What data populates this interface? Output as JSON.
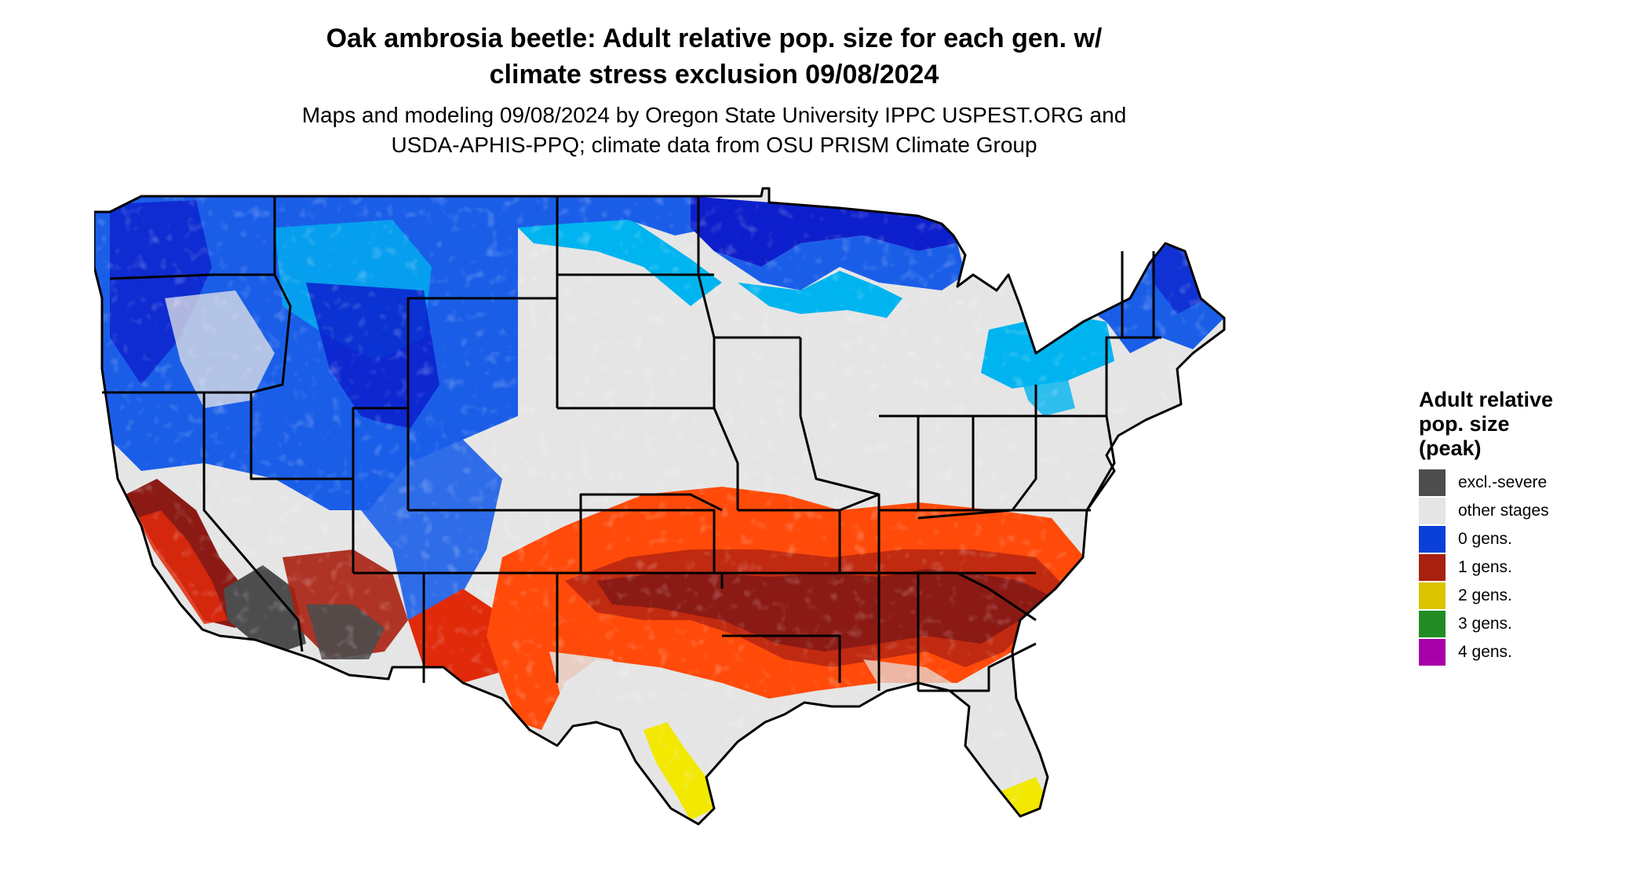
{
  "title": {
    "line1": "Oak ambrosia beetle: Adult relative pop. size for each gen. w/",
    "line2": "climate stress exclusion 09/08/2024"
  },
  "subtitle": {
    "line1": "Maps and modeling 09/08/2024 by Oregon State University IPPC USPEST.ORG and",
    "line2": "USDA-APHIS-PPQ; climate data from OSU PRISM Climate Group"
  },
  "legend": {
    "title_line1": "Adult relative",
    "title_line2": "pop. size",
    "title_line3": "(peak)",
    "items": [
      {
        "label": "excl.-severe",
        "color": "#4d4d4d"
      },
      {
        "label": "other stages",
        "color": "#e5e5e5"
      },
      {
        "label": "0 gens.",
        "color": "#0a3fd8"
      },
      {
        "label": "1 gens.",
        "color": "#a8200f"
      },
      {
        "label": "2 gens.",
        "color": "#dcc400"
      },
      {
        "label": "3 gens.",
        "color": "#238b24"
      },
      {
        "label": "4 gens.",
        "color": "#a800a8"
      }
    ]
  },
  "map_colors": {
    "land": "#e5e5e5",
    "blue_dark": "#0d1fcc",
    "blue": "#1a5ee8",
    "blue_light": "#00b4f0",
    "red_dark": "#8b1a14",
    "red": "#e02a0a",
    "orange": "#ff4a0a",
    "yellow": "#f2e800",
    "grey_dark": "#4d4d4d",
    "border": "#000000"
  }
}
